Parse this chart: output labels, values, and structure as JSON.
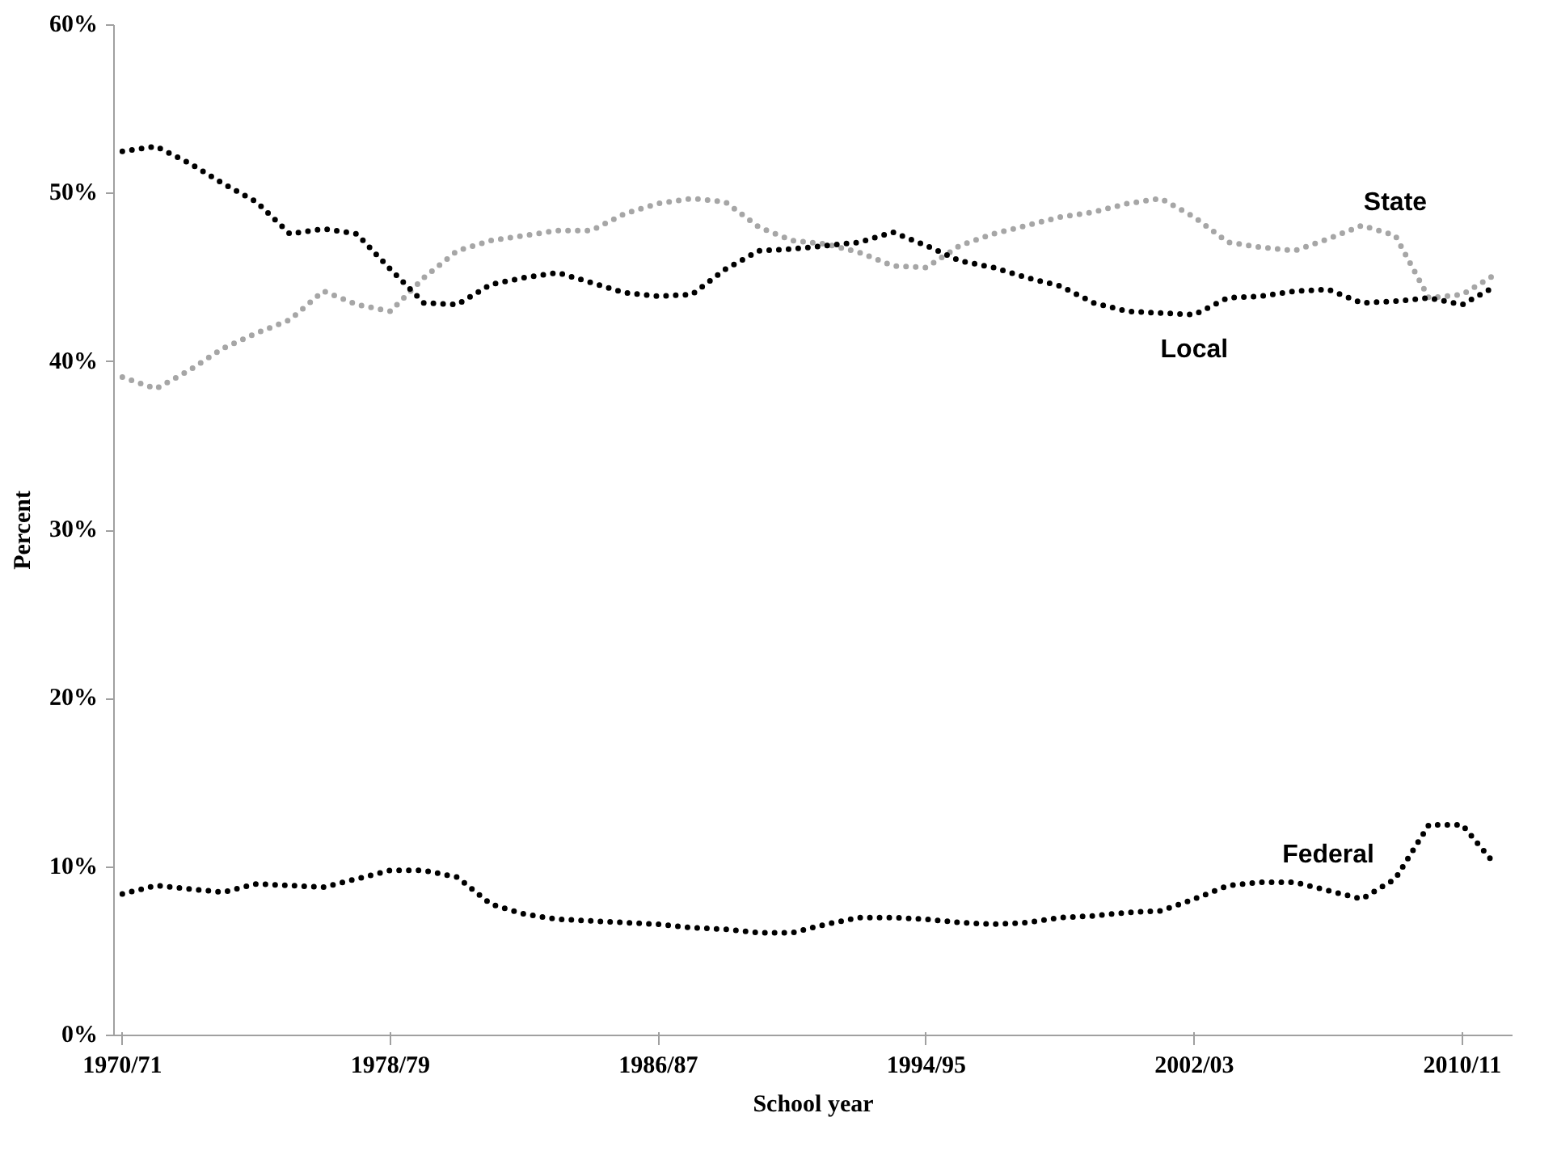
{
  "chart_data": {
    "type": "line",
    "xlabel": "School year",
    "ylabel": "Percent",
    "categories": [
      "1970/71",
      null,
      null,
      null,
      null,
      null,
      null,
      null,
      "1978/79",
      null,
      null,
      null,
      null,
      null,
      null,
      null,
      "1986/87",
      null,
      null,
      null,
      null,
      null,
      null,
      null,
      "1994/95",
      null,
      null,
      null,
      null,
      null,
      null,
      null,
      "2002/03",
      null,
      null,
      null,
      null,
      null,
      null,
      null,
      "2010/11",
      null
    ],
    "ylim": [
      0,
      60
    ],
    "yticks": [
      {
        "value": 0,
        "label": "0%"
      },
      {
        "value": 10,
        "label": "10%"
      },
      {
        "value": 20,
        "label": "20%"
      },
      {
        "value": 30,
        "label": "30%"
      },
      {
        "value": 40,
        "label": "40%"
      },
      {
        "value": 50,
        "label": "50%"
      },
      {
        "value": 60,
        "label": "60%"
      }
    ],
    "grid": false,
    "marker": "none",
    "line_style": "dotted",
    "series": [
      {
        "name": "State",
        "color": "#a6a6a6",
        "values": [
          39.1,
          38.4,
          39.5,
          40.8,
          41.7,
          42.5,
          44.2,
          43.4,
          43.0,
          45.0,
          46.6,
          47.2,
          47.5,
          47.8,
          47.8,
          48.8,
          49.4,
          49.7,
          49.5,
          48.0,
          47.2,
          47.0,
          46.5,
          45.7,
          45.6,
          46.9,
          47.6,
          48.1,
          48.6,
          48.9,
          49.4,
          49.7,
          48.6,
          47.1,
          46.8,
          46.6,
          47.3,
          48.1,
          47.5,
          43.8,
          44.0,
          45.2
        ]
      },
      {
        "name": "Local",
        "color": "#000000",
        "values": [
          52.5,
          52.8,
          51.8,
          50.6,
          49.5,
          47.6,
          47.9,
          47.6,
          45.5,
          43.5,
          43.4,
          44.6,
          45.0,
          45.3,
          44.7,
          44.1,
          43.9,
          44.0,
          45.5,
          46.6,
          46.7,
          46.9,
          47.1,
          47.7,
          46.9,
          46.0,
          45.6,
          45.0,
          44.5,
          43.5,
          43.0,
          42.9,
          42.8,
          43.8,
          43.9,
          44.2,
          44.3,
          43.5,
          43.6,
          43.8,
          43.4,
          44.5
        ]
      },
      {
        "name": "Federal",
        "color": "#000000",
        "values": [
          8.4,
          8.9,
          8.7,
          8.5,
          9.0,
          8.9,
          8.8,
          9.3,
          9.8,
          9.8,
          9.4,
          7.8,
          7.2,
          6.9,
          6.8,
          6.7,
          6.6,
          6.4,
          6.3,
          6.1,
          6.1,
          6.6,
          7.0,
          7.0,
          6.9,
          6.7,
          6.6,
          6.7,
          7.0,
          7.1,
          7.3,
          7.4,
          8.1,
          8.9,
          9.1,
          9.1,
          8.6,
          8.1,
          9.3,
          12.5,
          12.5,
          10.1
        ]
      }
    ]
  }
}
